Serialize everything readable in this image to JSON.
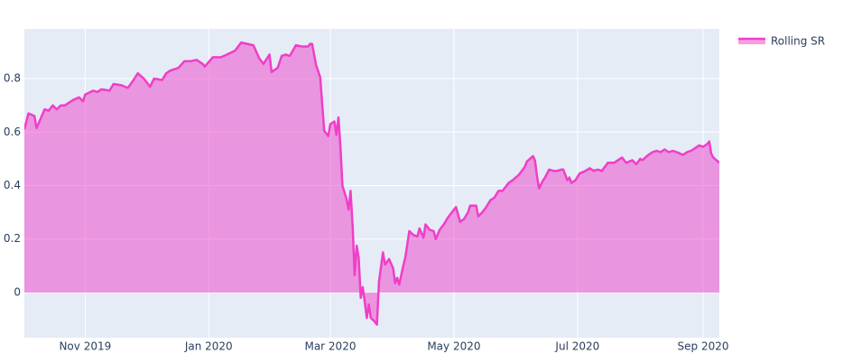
{
  "chart_data": {
    "type": "area",
    "x": [
      "2019-10-02",
      "2019-10-04",
      "2019-10-07",
      "2019-10-08",
      "2019-10-10",
      "2019-10-12",
      "2019-10-14",
      "2019-10-16",
      "2019-10-18",
      "2019-10-20",
      "2019-10-22",
      "2019-10-26",
      "2019-10-29",
      "2019-10-31",
      "2019-11-01",
      "2019-11-05",
      "2019-11-07",
      "2019-11-09",
      "2019-11-13",
      "2019-11-15",
      "2019-11-19",
      "2019-11-22",
      "2019-11-24",
      "2019-11-27",
      "2019-11-30",
      "2019-12-03",
      "2019-12-05",
      "2019-12-09",
      "2019-12-11",
      "2019-12-13",
      "2019-12-17",
      "2019-12-20",
      "2019-12-23",
      "2019-12-26",
      "2019-12-29",
      "2019-12-30",
      "2020-01-03",
      "2020-01-07",
      "2020-01-10",
      "2020-01-14",
      "2020-01-17",
      "2020-01-20",
      "2020-01-23",
      "2020-01-26",
      "2020-01-28",
      "2020-01-31",
      "2020-02-01",
      "2020-02-04",
      "2020-02-06",
      "2020-02-08",
      "2020-02-10",
      "2020-02-13",
      "2020-02-16",
      "2020-02-19",
      "2020-02-20",
      "2020-02-21",
      "2020-02-23",
      "2020-02-25",
      "2020-02-26",
      "2020-02-27",
      "2020-02-29",
      "2020-03-01",
      "2020-03-03",
      "2020-03-04",
      "2020-03-05",
      "2020-03-06",
      "2020-03-07",
      "2020-03-09",
      "2020-03-10",
      "2020-03-11",
      "2020-03-12",
      "2020-03-13",
      "2020-03-14",
      "2020-03-15",
      "2020-03-16",
      "2020-03-17",
      "2020-03-18",
      "2020-03-19",
      "2020-03-20",
      "2020-03-21",
      "2020-03-23",
      "2020-03-24",
      "2020-03-25",
      "2020-03-27",
      "2020-03-28",
      "2020-03-30",
      "2020-04-01",
      "2020-04-02",
      "2020-04-03",
      "2020-04-04",
      "2020-04-06",
      "2020-04-07",
      "2020-04-09",
      "2020-04-11",
      "2020-04-13",
      "2020-04-14",
      "2020-04-16",
      "2020-04-17",
      "2020-04-19",
      "2020-04-21",
      "2020-04-22",
      "2020-04-24",
      "2020-04-26",
      "2020-04-28",
      "2020-04-30",
      "2020-05-02",
      "2020-05-04",
      "2020-05-06",
      "2020-05-08",
      "2020-05-09",
      "2020-05-12",
      "2020-05-13",
      "2020-05-15",
      "2020-05-17",
      "2020-05-19",
      "2020-05-21",
      "2020-05-23",
      "2020-05-25",
      "2020-05-28",
      "2020-05-30",
      "2020-06-02",
      "2020-06-05",
      "2020-06-06",
      "2020-06-09",
      "2020-06-10",
      "2020-06-11",
      "2020-06-12",
      "2020-06-14",
      "2020-06-15",
      "2020-06-17",
      "2020-06-19",
      "2020-06-21",
      "2020-06-23",
      "2020-06-24",
      "2020-06-26",
      "2020-06-27",
      "2020-06-28",
      "2020-06-30",
      "2020-07-02",
      "2020-07-05",
      "2020-07-07",
      "2020-07-09",
      "2020-07-11",
      "2020-07-13",
      "2020-07-16",
      "2020-07-19",
      "2020-07-23",
      "2020-07-25",
      "2020-07-28",
      "2020-07-30",
      "2020-08-01",
      "2020-08-02",
      "2020-08-05",
      "2020-08-07",
      "2020-08-09",
      "2020-08-11",
      "2020-08-13",
      "2020-08-15",
      "2020-08-17",
      "2020-08-19",
      "2020-08-22",
      "2020-08-24",
      "2020-08-26",
      "2020-08-28",
      "2020-08-30",
      "2020-09-01",
      "2020-09-03",
      "2020-09-04",
      "2020-09-05",
      "2020-09-06",
      "2020-09-09"
    ],
    "series": [
      {
        "name": "Rolling SR",
        "color": "#f03ec8",
        "values": [
          0.61,
          0.67,
          0.66,
          0.615,
          0.65,
          0.685,
          0.68,
          0.7,
          0.685,
          0.7,
          0.7,
          0.72,
          0.73,
          0.715,
          0.74,
          0.755,
          0.75,
          0.76,
          0.755,
          0.78,
          0.775,
          0.765,
          0.785,
          0.82,
          0.8,
          0.77,
          0.8,
          0.795,
          0.82,
          0.83,
          0.84,
          0.865,
          0.865,
          0.87,
          0.855,
          0.845,
          0.88,
          0.88,
          0.89,
          0.905,
          0.935,
          0.93,
          0.925,
          0.875,
          0.855,
          0.89,
          0.825,
          0.84,
          0.885,
          0.89,
          0.885,
          0.925,
          0.92,
          0.92,
          0.93,
          0.93,
          0.85,
          0.805,
          0.705,
          0.605,
          0.585,
          0.63,
          0.64,
          0.59,
          0.655,
          0.545,
          0.4,
          0.35,
          0.31,
          0.38,
          0.25,
          0.065,
          0.175,
          0.13,
          -0.02,
          0.02,
          -0.035,
          -0.095,
          -0.045,
          -0.095,
          -0.11,
          -0.12,
          0.04,
          0.15,
          0.105,
          0.125,
          0.09,
          0.035,
          0.055,
          0.03,
          0.1,
          0.13,
          0.23,
          0.215,
          0.21,
          0.24,
          0.205,
          0.255,
          0.235,
          0.23,
          0.2,
          0.235,
          0.255,
          0.28,
          0.3,
          0.32,
          0.265,
          0.275,
          0.3,
          0.325,
          0.325,
          0.285,
          0.3,
          0.32,
          0.345,
          0.355,
          0.38,
          0.38,
          0.41,
          0.42,
          0.44,
          0.47,
          0.49,
          0.51,
          0.495,
          0.435,
          0.39,
          0.42,
          0.43,
          0.46,
          0.455,
          0.455,
          0.46,
          0.46,
          0.42,
          0.43,
          0.41,
          0.42,
          0.445,
          0.455,
          0.465,
          0.455,
          0.46,
          0.455,
          0.485,
          0.485,
          0.505,
          0.485,
          0.495,
          0.48,
          0.5,
          0.495,
          0.515,
          0.525,
          0.53,
          0.525,
          0.535,
          0.525,
          0.53,
          0.525,
          0.515,
          0.525,
          0.53,
          0.54,
          0.55,
          0.545,
          0.555,
          0.565,
          0.52,
          0.505,
          0.485
        ]
      }
    ],
    "xlim": [
      "2019-10-02",
      "2020-09-09"
    ],
    "xticks": [
      {
        "value": "2019-11-01",
        "label": "Nov 2019"
      },
      {
        "value": "2020-01-01",
        "label": "Jan 2020"
      },
      {
        "value": "2020-03-01",
        "label": "Mar 2020"
      },
      {
        "value": "2020-05-01",
        "label": "May 2020"
      },
      {
        "value": "2020-07-01",
        "label": "Jul 2020"
      },
      {
        "value": "2020-09-01",
        "label": "Sep 2020"
      }
    ],
    "ylim": [
      -0.169,
      0.986
    ],
    "yticks": [
      0,
      0.2,
      0.4,
      0.6,
      0.8
    ],
    "grid": true,
    "legend": "top-right"
  }
}
